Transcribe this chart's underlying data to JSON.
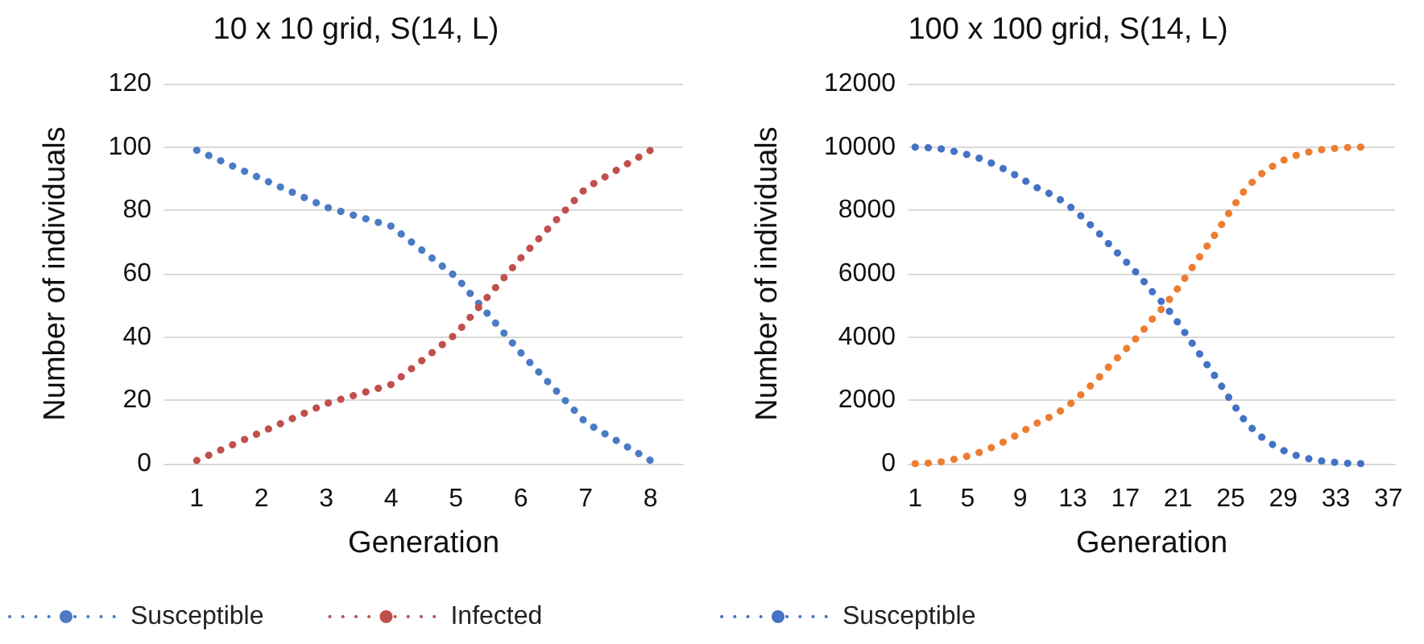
{
  "chart_data": [
    {
      "type": "line",
      "title": "10 x 10 grid, S(14, L)",
      "xlabel": "Generation",
      "ylabel": "Number of individuals",
      "categories": [
        "1",
        "2",
        "3",
        "4",
        "5",
        "6",
        "7",
        "8"
      ],
      "series": [
        {
          "name": "Susceptible",
          "color": "#4a7bc4",
          "values": [
            99,
            90,
            81,
            75,
            59,
            35,
            13,
            1
          ]
        },
        {
          "name": "Infected",
          "color": "#c0504d",
          "values": [
            1,
            10,
            19,
            25,
            41,
            65,
            87,
            99
          ]
        }
      ],
      "ylim": [
        0,
        120
      ],
      "yticks": [
        0,
        20,
        40,
        60,
        80,
        100,
        120
      ],
      "grid": "y",
      "legend": "bottom",
      "line_style": "dotted",
      "marker": "none"
    },
    {
      "type": "line",
      "title": "100 x 100 grid, S(14, L)",
      "xlabel": "Generation",
      "ylabel": "Number of individuals",
      "categories": [
        "1",
        null,
        null,
        null,
        "5",
        null,
        null,
        null,
        "9",
        null,
        null,
        null,
        "13",
        null,
        null,
        null,
        "17",
        null,
        null,
        null,
        "21",
        null,
        null,
        null,
        "25",
        null,
        null,
        null,
        "29",
        null,
        null,
        null,
        "33",
        null,
        null,
        null,
        "37"
      ],
      "series": [
        {
          "name": "Susceptible",
          "color": "#4472c4",
          "values": [
            10000,
            9980,
            9940,
            9860,
            9760,
            9630,
            9460,
            9260,
            9030,
            8770,
            8580,
            8350,
            8050,
            7680,
            7270,
            6820,
            6400,
            5960,
            5450,
            5000,
            4450,
            3850,
            3250,
            2650,
            2000,
            1400,
            950,
            650,
            420,
            260,
            150,
            80,
            40,
            10,
            0,
            null,
            null
          ]
        },
        {
          "color": "#ed7d31",
          "values": [
            0,
            20,
            60,
            140,
            240,
            370,
            540,
            740,
            970,
            1230,
            1420,
            1650,
            1950,
            2320,
            2730,
            3180,
            3600,
            4040,
            4550,
            5000,
            5550,
            6150,
            6750,
            7350,
            8000,
            8600,
            9050,
            9350,
            9580,
            9740,
            9850,
            9920,
            9960,
            9990,
            10000,
            null,
            null
          ]
        }
      ],
      "ylim": [
        0,
        12000
      ],
      "yticks": [
        0,
        2000,
        4000,
        6000,
        8000,
        10000,
        12000
      ],
      "grid": "y",
      "legend": "bottom",
      "line_style": "dotted",
      "marker": "none"
    }
  ]
}
